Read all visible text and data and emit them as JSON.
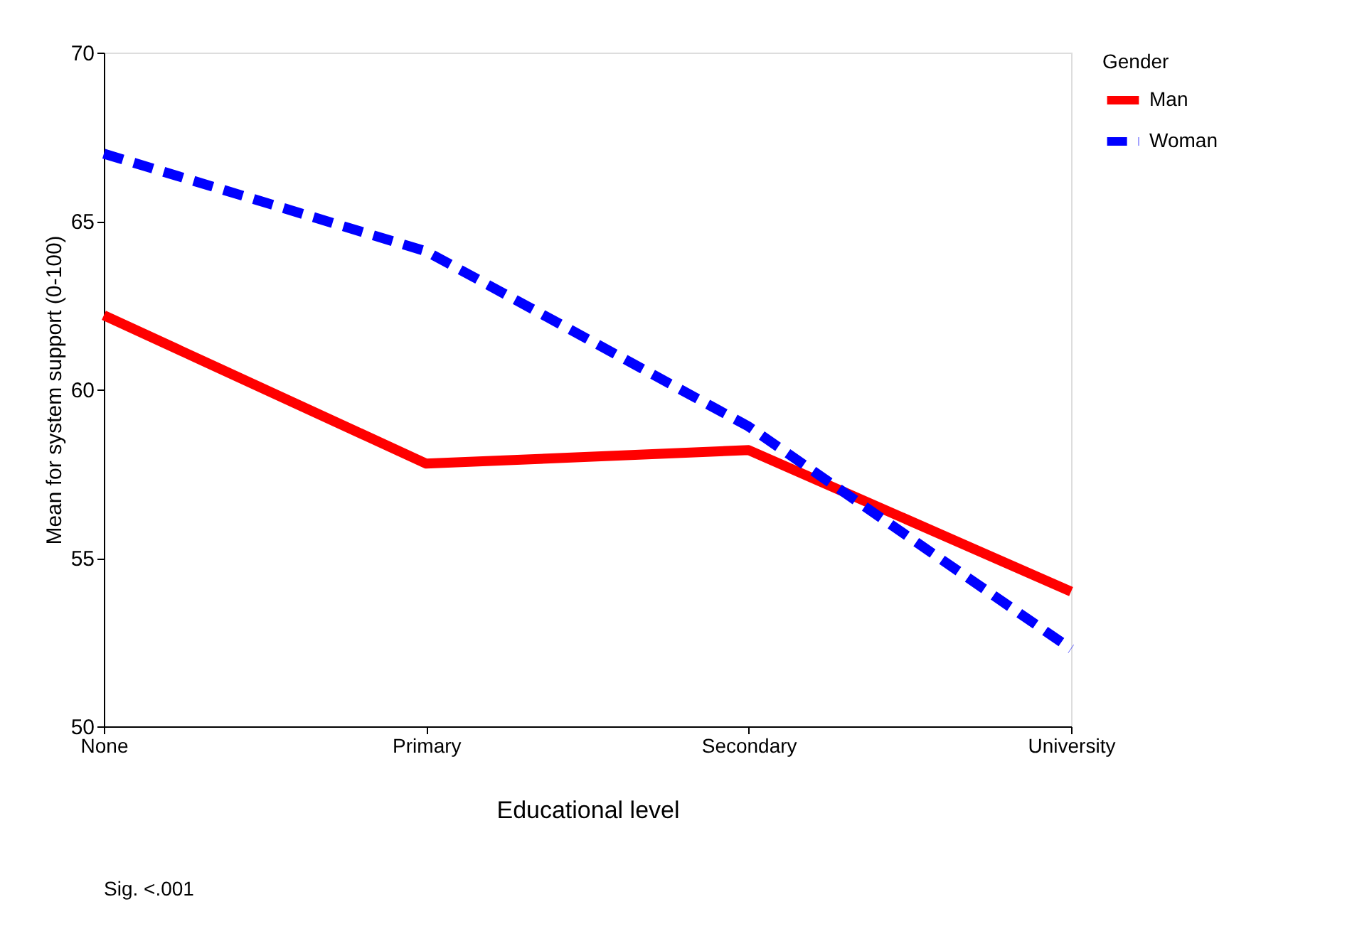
{
  "chart_data": {
    "type": "line",
    "xlabel": "Educational level",
    "ylabel": "Mean for system support (0-100)",
    "legend_title": "Gender",
    "categories": [
      "None",
      "Primary",
      "Secondary",
      "University"
    ],
    "series": [
      {
        "name": "Man",
        "color": "#ff0000",
        "line_style": "solid",
        "values": [
          62.2,
          57.8,
          58.2,
          54.0
        ]
      },
      {
        "name": "Woman",
        "color": "#0000ff",
        "line_style": "dashed",
        "values": [
          67.0,
          64.1,
          58.9,
          52.3
        ]
      }
    ],
    "ylim": [
      50,
      70
    ],
    "yticks": [
      50,
      55,
      60,
      65,
      70
    ],
    "grid": false,
    "legend": "right",
    "marker": "none",
    "annotations": [
      "Sig. <.001"
    ]
  }
}
